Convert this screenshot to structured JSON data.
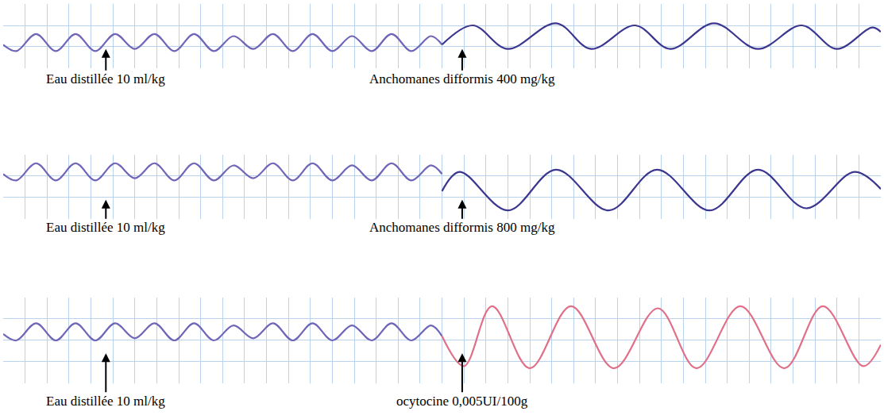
{
  "chart_data": [
    {
      "type": "line",
      "grid": true,
      "tick_labels": false,
      "xlim": [
        0,
        100
      ],
      "ylim": [
        0,
        3
      ],
      "xticks": [
        0,
        2.5,
        5,
        7.5,
        10,
        12.5,
        15,
        17.5,
        20,
        22.5,
        25,
        27.5,
        30,
        32.5,
        35,
        37.5,
        40,
        42.5,
        45,
        47.5,
        50,
        52.5,
        55,
        57.5,
        60,
        62.5,
        65,
        67.5,
        70,
        72.5,
        75,
        77.5,
        80,
        82.5,
        85,
        87.5,
        90,
        92.5,
        95,
        97.5,
        100
      ],
      "yticks": [
        0,
        1,
        2,
        3
      ],
      "series": [
        {
          "color": "#6f66b8",
          "x": [
            0,
            1.5,
            3.75,
            6,
            8.25,
            10.5,
            12.75,
            15,
            17.25,
            19.5,
            21.75,
            24,
            26.25,
            28.5,
            30.75,
            33,
            35.25,
            37.5,
            39.75,
            42,
            44.25,
            46.5,
            48.75,
            50
          ],
          "values": [
            1.1,
            0.8,
            1.6,
            0.8,
            1.6,
            0.8,
            1.6,
            0.9,
            1.6,
            0.8,
            1.6,
            0.8,
            1.5,
            0.9,
            1.6,
            0.8,
            1.6,
            0.8,
            1.5,
            0.8,
            1.6,
            0.8,
            1.5,
            1.1
          ]
        },
        {
          "color": "#3b368f",
          "x": [
            50,
            53.5,
            57.5,
            63,
            67,
            72,
            76,
            81,
            86,
            91,
            95,
            99,
            100
          ],
          "values": [
            1.1,
            2.0,
            0.9,
            2.1,
            0.9,
            2.0,
            0.9,
            2.1,
            0.9,
            2.0,
            0.9,
            1.9,
            1.7
          ]
        }
      ],
      "annotations": [
        {
          "text": "Eau distillée 10 ml/kg",
          "x": 11.7
        },
        {
          "text": "Anchomanes difformis 400 mg/kg",
          "x": 52.3
        }
      ]
    },
    {
      "type": "line",
      "grid": true,
      "tick_labels": false,
      "xlim": [
        0,
        100
      ],
      "ylim": [
        0,
        3
      ],
      "xticks": [
        0,
        2.5,
        5,
        7.5,
        10,
        12.5,
        15,
        17.5,
        20,
        22.5,
        25,
        27.5,
        30,
        32.5,
        35,
        37.5,
        40,
        42.5,
        45,
        47.5,
        50,
        52.5,
        55,
        57.5,
        60,
        62.5,
        65,
        67.5,
        70,
        72.5,
        75,
        77.5,
        80,
        82.5,
        85,
        87.5,
        90,
        92.5,
        95,
        97.5,
        100
      ],
      "yticks": [
        0,
        1,
        2,
        3
      ],
      "series": [
        {
          "color": "#6f66b8",
          "x": [
            0,
            1.5,
            3.75,
            6,
            8.25,
            10.5,
            12.75,
            15,
            17.25,
            19.5,
            21.75,
            24,
            26.25,
            28.5,
            30.75,
            33,
            35.25,
            37.5,
            39.75,
            42,
            44.25,
            46.5,
            48.75,
            50
          ],
          "values": [
            2.1,
            1.8,
            2.6,
            1.8,
            2.6,
            1.8,
            2.6,
            1.9,
            2.6,
            1.8,
            2.6,
            1.8,
            2.5,
            1.9,
            2.6,
            1.8,
            2.6,
            1.8,
            2.5,
            1.8,
            2.6,
            1.8,
            2.5,
            2.1
          ]
        },
        {
          "color": "#3b368f",
          "x": [
            50,
            52,
            57.5,
            63,
            69,
            74.5,
            80.5,
            86,
            91.5,
            97,
            100
          ],
          "values": [
            1.3,
            2.2,
            0.4,
            2.3,
            0.4,
            2.3,
            0.4,
            2.3,
            0.5,
            2.2,
            1.4
          ]
        }
      ],
      "annotations": [
        {
          "text": "Eau distillée 10 ml/kg",
          "x": 11.7
        },
        {
          "text": "Anchomanes difformis 800 mg/kg",
          "x": 52.3
        }
      ]
    },
    {
      "type": "line",
      "grid": true,
      "tick_labels": false,
      "xlim": [
        0,
        100
      ],
      "ylim": [
        0,
        4
      ],
      "xticks": [
        0,
        2.5,
        5,
        7.5,
        10,
        12.5,
        15,
        17.5,
        20,
        22.5,
        25,
        27.5,
        30,
        32.5,
        35,
        37.5,
        40,
        42.5,
        45,
        47.5,
        50,
        52.5,
        55,
        57.5,
        60,
        62.5,
        65,
        67.5,
        70,
        72.5,
        75,
        77.5,
        80,
        82.5,
        85,
        87.5,
        90,
        92.5,
        95,
        97.5,
        100
      ],
      "yticks": [
        0,
        1,
        2,
        3,
        4
      ],
      "series": [
        {
          "color": "#6f66b8",
          "x": [
            0,
            1.5,
            3.75,
            6,
            8.25,
            10.5,
            12.75,
            15,
            17.25,
            19.5,
            21.75,
            24,
            26.25,
            28.5,
            30.75,
            33,
            35.25,
            37.5,
            39.75,
            42,
            44.25,
            46.5,
            48.75,
            50
          ],
          "values": [
            2.3,
            2.0,
            2.8,
            2.0,
            2.8,
            2.0,
            2.8,
            2.1,
            2.8,
            2.0,
            2.8,
            2.0,
            2.7,
            2.1,
            2.8,
            2.0,
            2.8,
            2.0,
            2.7,
            2.0,
            2.8,
            2.0,
            2.7,
            2.2
          ]
        },
        {
          "color": "#e07088",
          "x": [
            50,
            52.5,
            55.7,
            60,
            64.7,
            69.6,
            74.6,
            79,
            84,
            89,
            93.4,
            98,
            100
          ],
          "values": [
            2.2,
            0.8,
            3.6,
            0.7,
            3.6,
            0.7,
            3.5,
            0.7,
            3.6,
            0.7,
            3.6,
            0.8,
            1.8
          ]
        }
      ],
      "annotations": [
        {
          "text": "Eau distillée 10 ml/kg",
          "x": 11.7
        },
        {
          "text": "ocytocine 0,005UI/100g",
          "x": 52.3
        }
      ]
    }
  ]
}
